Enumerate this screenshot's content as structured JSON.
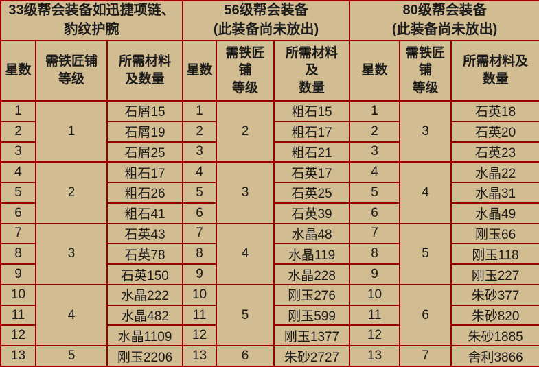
{
  "colors": {
    "background": "#d2bc92",
    "border": "#9a0000",
    "text": "#1c1c1c"
  },
  "chart_data": {
    "type": "table",
    "groups": [
      {
        "title": "33级帮会装备如迅捷项链、\n豹纹护腕",
        "headers": {
          "star": "星数",
          "smith": "需铁匠铺\n等级",
          "material": "所需材料\n及数量"
        },
        "smith_levels": [
          "1",
          "2",
          "3",
          "4",
          "5"
        ],
        "rows": [
          {
            "star": "1",
            "material": "石屑15"
          },
          {
            "star": "2",
            "material": "石屑19"
          },
          {
            "star": "3",
            "material": "石屑25"
          },
          {
            "star": "4",
            "material": "粗石17"
          },
          {
            "star": "5",
            "material": "粗石26"
          },
          {
            "star": "6",
            "material": "粗石41"
          },
          {
            "star": "7",
            "material": "石英43"
          },
          {
            "star": "8",
            "material": "石英78"
          },
          {
            "star": "9",
            "material": "石英150"
          },
          {
            "star": "10",
            "material": "水晶222"
          },
          {
            "star": "11",
            "material": "水晶482"
          },
          {
            "star": "12",
            "material": "水晶1109"
          },
          {
            "star": "13",
            "material": "刚玉2206"
          }
        ]
      },
      {
        "title": "56级帮会装备\n(此装备尚未放出)",
        "headers": {
          "star": "星数",
          "smith": "需铁匠\n铺\n等级",
          "material": "所需材料\n及\n数量"
        },
        "smith_levels": [
          "2",
          "3",
          "4",
          "5",
          "6"
        ],
        "rows": [
          {
            "star": "1",
            "material": "粗石15"
          },
          {
            "star": "2",
            "material": "粗石17"
          },
          {
            "star": "3",
            "material": "粗石21"
          },
          {
            "star": "4",
            "material": "石英17"
          },
          {
            "star": "5",
            "material": "石英25"
          },
          {
            "star": "6",
            "material": "石英39"
          },
          {
            "star": "7",
            "material": "水晶48"
          },
          {
            "star": "8",
            "material": "水晶119"
          },
          {
            "star": "9",
            "material": "水晶228"
          },
          {
            "star": "10",
            "material": "刚玉276"
          },
          {
            "star": "11",
            "material": "刚玉599"
          },
          {
            "star": "12",
            "material": "刚玉1377"
          },
          {
            "star": "13",
            "material": "朱砂2727"
          }
        ]
      },
      {
        "title": "80级帮会装备\n(此装备尚未放出)",
        "headers": {
          "star": "星数",
          "smith": "需铁匠\n铺\n等级",
          "material": "所需材料及\n数量"
        },
        "smith_levels": [
          "3",
          "4",
          "5",
          "6",
          "7"
        ],
        "rows": [
          {
            "star": "1",
            "material": "石英18"
          },
          {
            "star": "2",
            "material": "石英20"
          },
          {
            "star": "3",
            "material": "石英23"
          },
          {
            "star": "4",
            "material": "水晶22"
          },
          {
            "star": "5",
            "material": "水晶31"
          },
          {
            "star": "6",
            "material": "水晶49"
          },
          {
            "star": "7",
            "material": "刚玉66"
          },
          {
            "star": "8",
            "material": "刚玉118"
          },
          {
            "star": "9",
            "material": "刚玉227"
          },
          {
            "star": "10",
            "material": "朱砂377"
          },
          {
            "star": "11",
            "material": "朱砂820"
          },
          {
            "star": "12",
            "material": "朱砂1885"
          },
          {
            "star": "13",
            "material": "舍利3866"
          }
        ]
      }
    ]
  }
}
